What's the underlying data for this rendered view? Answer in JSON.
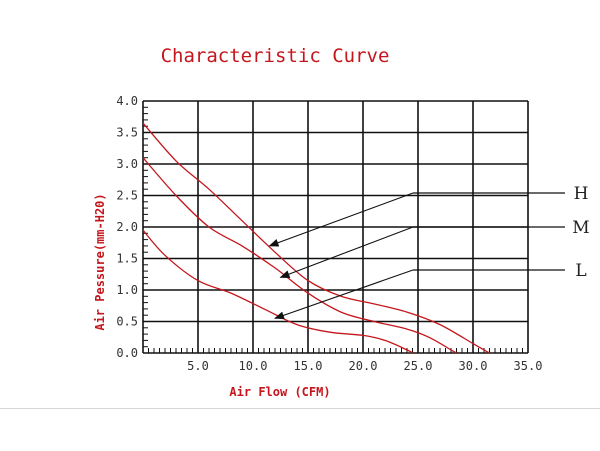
{
  "chart_data": {
    "type": "line",
    "title": "Characteristic Curve",
    "xlabel": "Air Flow (CFM)",
    "ylabel": "Air Pessure(mm-H20)",
    "xlim": [
      0,
      35
    ],
    "ylim": [
      0,
      4
    ],
    "x_ticks": [
      "5.0",
      "10.0",
      "15.0",
      "20.0",
      "25.0",
      "30.0",
      "35.0"
    ],
    "y_ticks": [
      "0.0",
      "0.5",
      "1.0",
      "1.5",
      "2.0",
      "2.5",
      "3.0",
      "3.5",
      "4.0"
    ],
    "grid": true,
    "line_color": "#c4161c",
    "series": [
      {
        "name": "H",
        "points": [
          [
            0,
            3.65
          ],
          [
            3,
            3.05
          ],
          [
            6,
            2.6
          ],
          [
            9,
            2.1
          ],
          [
            12,
            1.6
          ],
          [
            15,
            1.15
          ],
          [
            18,
            0.9
          ],
          [
            21,
            0.78
          ],
          [
            24,
            0.65
          ],
          [
            27,
            0.45
          ],
          [
            30,
            0.15
          ],
          [
            31.5,
            0
          ]
        ]
      },
      {
        "name": "M",
        "points": [
          [
            0,
            3.1
          ],
          [
            3,
            2.5
          ],
          [
            6,
            2.0
          ],
          [
            9,
            1.7
          ],
          [
            12,
            1.35
          ],
          [
            15,
            0.95
          ],
          [
            18,
            0.65
          ],
          [
            21,
            0.5
          ],
          [
            24,
            0.38
          ],
          [
            26,
            0.25
          ],
          [
            28,
            0.05
          ],
          [
            28.5,
            0
          ]
        ]
      },
      {
        "name": "L",
        "points": [
          [
            0,
            1.95
          ],
          [
            2,
            1.55
          ],
          [
            5,
            1.15
          ],
          [
            8,
            0.95
          ],
          [
            11,
            0.7
          ],
          [
            14,
            0.45
          ],
          [
            17,
            0.33
          ],
          [
            20,
            0.28
          ],
          [
            22,
            0.2
          ],
          [
            24,
            0.05
          ],
          [
            24.5,
            0
          ]
        ]
      }
    ],
    "annotations": [
      {
        "series": "H",
        "arrow_tip": [
          11.5,
          1.7
        ],
        "label": "H"
      },
      {
        "series": "M",
        "arrow_tip": [
          12.5,
          1.2
        ],
        "label": "M"
      },
      {
        "series": "L",
        "arrow_tip": [
          12.0,
          0.55
        ],
        "label": "L"
      }
    ]
  }
}
